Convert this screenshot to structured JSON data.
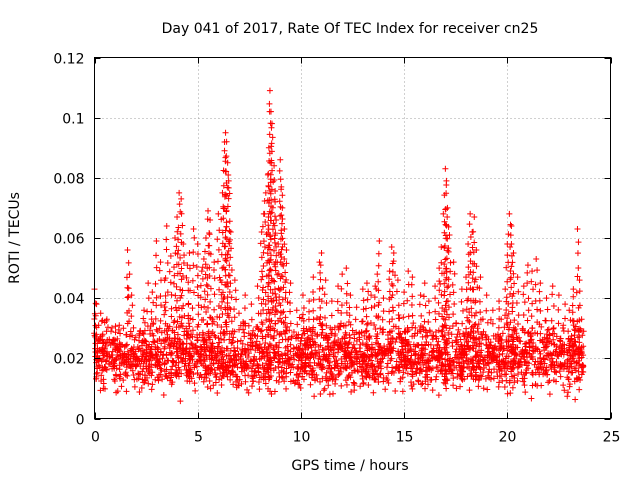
{
  "chart_data": {
    "type": "scatter",
    "title": "Day 041 of 2017, Rate Of TEC Index for receiver cn25",
    "xlabel": "GPS time / hours",
    "ylabel": "ROTI / TECUs",
    "xlim": [
      0,
      25
    ],
    "ylim": [
      0,
      0.12
    ],
    "xticks": [
      0,
      5,
      10,
      15,
      20,
      25
    ],
    "xtick_labels": [
      "0",
      "5",
      "10",
      "15",
      "20",
      "25"
    ],
    "yticks": [
      0,
      0.02,
      0.04,
      0.06,
      0.08,
      0.1,
      0.12
    ],
    "ytick_labels": [
      "0",
      "0.02",
      "0.04",
      "0.06",
      "0.08",
      "0.1",
      "0.12"
    ],
    "grid": true,
    "marker": "+",
    "series": [
      {
        "name": "ROTI",
        "color": "#ff0000",
        "points": [
          [
            0.0,
            0.043
          ],
          [
            0.1,
            0.038
          ],
          [
            0.2,
            0.031
          ],
          [
            0.3,
            0.035
          ],
          [
            0.4,
            0.028
          ],
          [
            0.6,
            0.033
          ],
          [
            0.8,
            0.029
          ],
          [
            1.0,
            0.026
          ],
          [
            1.2,
            0.031
          ],
          [
            1.4,
            0.03
          ],
          [
            1.6,
            0.056
          ],
          [
            1.7,
            0.048
          ],
          [
            1.8,
            0.041
          ],
          [
            2.0,
            0.027
          ],
          [
            2.2,
            0.029
          ],
          [
            2.4,
            0.036
          ],
          [
            2.6,
            0.045
          ],
          [
            2.8,
            0.042
          ],
          [
            3.0,
            0.059
          ],
          [
            3.2,
            0.052
          ],
          [
            3.4,
            0.046
          ],
          [
            3.5,
            0.064
          ],
          [
            3.7,
            0.054
          ],
          [
            3.9,
            0.06
          ],
          [
            4.0,
            0.067
          ],
          [
            4.1,
            0.075
          ],
          [
            4.2,
            0.073
          ],
          [
            4.3,
            0.058
          ],
          [
            4.5,
            0.051
          ],
          [
            4.6,
            0.055
          ],
          [
            4.8,
            0.063
          ],
          [
            5.0,
            0.058
          ],
          [
            5.2,
            0.049
          ],
          [
            5.3,
            0.053
          ],
          [
            5.4,
            0.06
          ],
          [
            5.5,
            0.069
          ],
          [
            5.6,
            0.066
          ],
          [
            5.8,
            0.052
          ],
          [
            6.0,
            0.068
          ],
          [
            6.1,
            0.046
          ],
          [
            6.2,
            0.075
          ],
          [
            6.3,
            0.089
          ],
          [
            6.35,
            0.095
          ],
          [
            6.4,
            0.092
          ],
          [
            6.45,
            0.085
          ],
          [
            6.5,
            0.079
          ],
          [
            6.6,
            0.062
          ],
          [
            6.8,
            0.046
          ],
          [
            7.0,
            0.035
          ],
          [
            7.3,
            0.041
          ],
          [
            7.6,
            0.038
          ],
          [
            7.9,
            0.044
          ],
          [
            8.1,
            0.062
          ],
          [
            8.2,
            0.068
          ],
          [
            8.3,
            0.075
          ],
          [
            8.4,
            0.081
          ],
          [
            8.45,
            0.09
          ],
          [
            8.5,
            0.109
          ],
          [
            8.55,
            0.102
          ],
          [
            8.6,
            0.098
          ],
          [
            8.7,
            0.084
          ],
          [
            8.75,
            0.072
          ],
          [
            8.8,
            0.066
          ],
          [
            8.9,
            0.058
          ],
          [
            9.0,
            0.086
          ],
          [
            9.05,
            0.077
          ],
          [
            9.1,
            0.07
          ],
          [
            9.2,
            0.063
          ],
          [
            9.3,
            0.056
          ],
          [
            9.5,
            0.045
          ],
          [
            9.8,
            0.036
          ],
          [
            10.1,
            0.041
          ],
          [
            10.4,
            0.039
          ],
          [
            10.6,
            0.047
          ],
          [
            10.9,
            0.052
          ],
          [
            11.0,
            0.055
          ],
          [
            11.2,
            0.046
          ],
          [
            11.5,
            0.039
          ],
          [
            11.8,
            0.044
          ],
          [
            12.0,
            0.048
          ],
          [
            12.2,
            0.05
          ],
          [
            12.4,
            0.041
          ],
          [
            12.7,
            0.037
          ],
          [
            13.0,
            0.043
          ],
          [
            13.2,
            0.045
          ],
          [
            13.4,
            0.041
          ],
          [
            13.6,
            0.044
          ],
          [
            13.7,
            0.048
          ],
          [
            13.8,
            0.059
          ],
          [
            14.0,
            0.04
          ],
          [
            14.3,
            0.049
          ],
          [
            14.4,
            0.057
          ],
          [
            14.5,
            0.055
          ],
          [
            14.7,
            0.046
          ],
          [
            15.0,
            0.042
          ],
          [
            15.2,
            0.049
          ],
          [
            15.4,
            0.047
          ],
          [
            15.8,
            0.041
          ],
          [
            16.0,
            0.045
          ],
          [
            16.2,
            0.039
          ],
          [
            16.5,
            0.044
          ],
          [
            16.7,
            0.05
          ],
          [
            16.8,
            0.057
          ],
          [
            16.9,
            0.068
          ],
          [
            17.0,
            0.083
          ],
          [
            17.05,
            0.079
          ],
          [
            17.1,
            0.07
          ],
          [
            17.2,
            0.061
          ],
          [
            17.4,
            0.052
          ],
          [
            17.8,
            0.043
          ],
          [
            18.0,
            0.047
          ],
          [
            18.1,
            0.058
          ],
          [
            18.2,
            0.068
          ],
          [
            18.3,
            0.062
          ],
          [
            18.4,
            0.067
          ],
          [
            18.5,
            0.056
          ],
          [
            18.7,
            0.047
          ],
          [
            19.0,
            0.041
          ],
          [
            19.3,
            0.036
          ],
          [
            19.6,
            0.039
          ],
          [
            19.9,
            0.043
          ],
          [
            20.0,
            0.058
          ],
          [
            20.1,
            0.068
          ],
          [
            20.2,
            0.064
          ],
          [
            20.3,
            0.055
          ],
          [
            20.5,
            0.047
          ],
          [
            20.8,
            0.044
          ],
          [
            21.0,
            0.051
          ],
          [
            21.2,
            0.049
          ],
          [
            21.4,
            0.053
          ],
          [
            21.6,
            0.045
          ],
          [
            21.9,
            0.04
          ],
          [
            22.2,
            0.044
          ],
          [
            22.5,
            0.041
          ],
          [
            22.8,
            0.038
          ],
          [
            23.0,
            0.036
          ],
          [
            23.2,
            0.043
          ],
          [
            23.4,
            0.063
          ],
          [
            23.5,
            0.046
          ],
          [
            23.6,
            0.033
          ],
          [
            23.7,
            0.029
          ]
        ],
        "baseline_band": {
          "low": 0.005,
          "high": 0.032,
          "median": 0.016
        }
      }
    ]
  }
}
